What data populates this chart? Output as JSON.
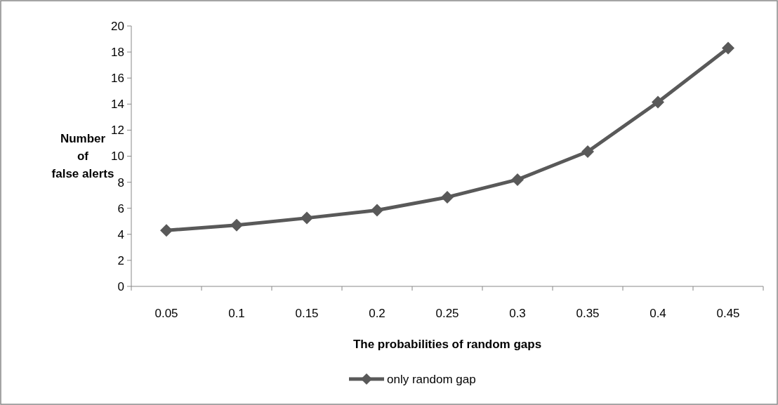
{
  "chart_data": {
    "type": "line",
    "xlabel": "The probabilities of random gaps",
    "ylabel": "Number of false alerts",
    "categories": [
      "0.05",
      "0.1",
      "0.15",
      "0.2",
      "0.25",
      "0.3",
      "0.35",
      "0.4",
      "0.45"
    ],
    "series": [
      {
        "name": "only random gap",
        "color": "#595959",
        "values": [
          4.3,
          4.7,
          5.25,
          5.85,
          6.85,
          8.2,
          10.35,
          14.15,
          18.3
        ]
      }
    ],
    "ylim": [
      0,
      20
    ],
    "yticks": [
      0,
      2,
      4,
      6,
      8,
      10,
      12,
      14,
      16,
      18,
      20
    ],
    "grid": false,
    "legend": "bottom",
    "marker": "diamond",
    "line_style": "solid"
  }
}
